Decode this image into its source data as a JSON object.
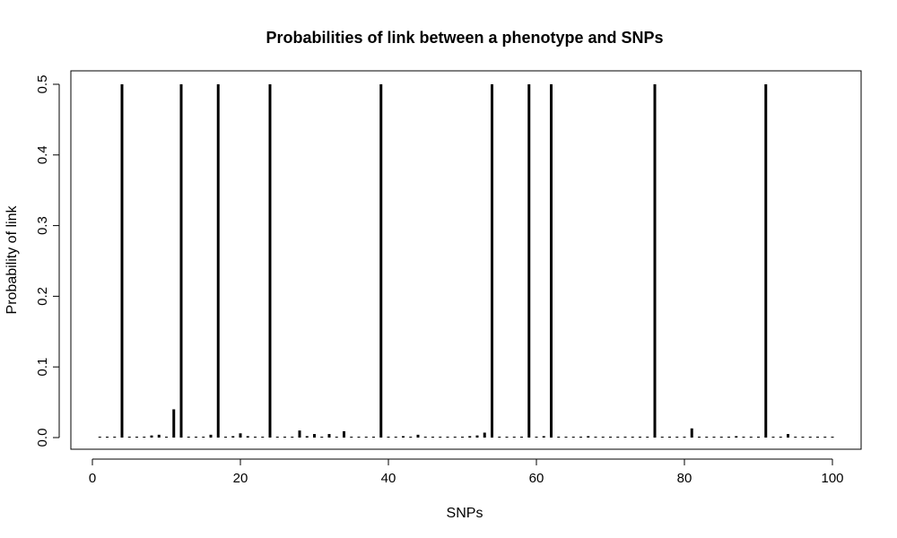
{
  "chart_data": {
    "type": "bar",
    "title": "Probabilities of link between a phenotype and SNPs",
    "xlabel": "SNPs",
    "ylabel": "Probability of link",
    "xlim": [
      1,
      100
    ],
    "ylim": [
      0,
      0.5
    ],
    "x_ticks": [
      0,
      20,
      40,
      60,
      80,
      100
    ],
    "x_tick_labels": [
      "0",
      "20",
      "40",
      "60",
      "80",
      "100"
    ],
    "y_ticks": [
      0.0,
      0.1,
      0.2,
      0.3,
      0.4,
      0.5
    ],
    "y_tick_labels": [
      "0.0",
      "0.1",
      "0.2",
      "0.3",
      "0.4",
      "0.5"
    ],
    "grid": false,
    "legend": "none",
    "bar_color": "#000000",
    "x": [
      1,
      2,
      3,
      4,
      5,
      6,
      7,
      8,
      9,
      10,
      11,
      12,
      13,
      14,
      15,
      16,
      17,
      18,
      19,
      20,
      21,
      22,
      23,
      24,
      25,
      26,
      27,
      28,
      29,
      30,
      31,
      32,
      33,
      34,
      35,
      36,
      37,
      38,
      39,
      40,
      41,
      42,
      43,
      44,
      45,
      46,
      47,
      48,
      49,
      50,
      51,
      52,
      53,
      54,
      55,
      56,
      57,
      58,
      59,
      60,
      61,
      62,
      63,
      64,
      65,
      66,
      67,
      68,
      69,
      70,
      71,
      72,
      73,
      74,
      75,
      76,
      77,
      78,
      79,
      80,
      81,
      82,
      83,
      84,
      85,
      86,
      87,
      88,
      89,
      90,
      91,
      92,
      93,
      94,
      95,
      96,
      97,
      98,
      99,
      100
    ],
    "values": [
      0.001,
      0.001,
      0.001,
      0.5,
      0.001,
      0.001,
      0.001,
      0.003,
      0.004,
      0.001,
      0.04,
      0.5,
      0.001,
      0.001,
      0.001,
      0.004,
      0.5,
      0.001,
      0.002,
      0.006,
      0.002,
      0.001,
      0.001,
      0.5,
      0.001,
      0.001,
      0.001,
      0.01,
      0.002,
      0.005,
      0.001,
      0.005,
      0.001,
      0.009,
      0.001,
      0.001,
      0.001,
      0.001,
      0.5,
      0.001,
      0.001,
      0.002,
      0.001,
      0.004,
      0.001,
      0.001,
      0.001,
      0.001,
      0.001,
      0.001,
      0.002,
      0.003,
      0.007,
      0.5,
      0.001,
      0.001,
      0.001,
      0.001,
      0.5,
      0.001,
      0.002,
      0.5,
      0.001,
      0.001,
      0.001,
      0.001,
      0.002,
      0.001,
      0.001,
      0.001,
      0.001,
      0.001,
      0.001,
      0.001,
      0.001,
      0.5,
      0.001,
      0.001,
      0.001,
      0.001,
      0.013,
      0.001,
      0.001,
      0.001,
      0.001,
      0.001,
      0.002,
      0.001,
      0.001,
      0.001,
      0.5,
      0.001,
      0.001,
      0.005,
      0.001,
      0.001,
      0.001,
      0.001,
      0.001,
      0.001
    ]
  }
}
